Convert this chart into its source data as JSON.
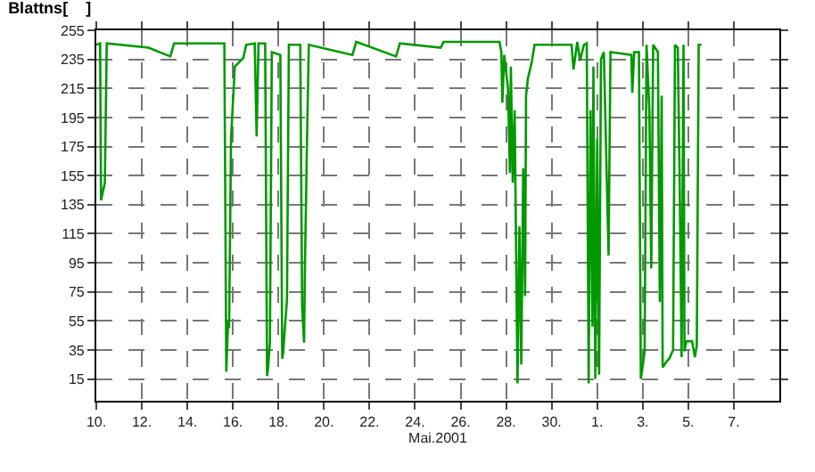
{
  "chart_data": {
    "type": "line",
    "title": "Blattns[    ]",
    "xlabel": "Mai.2001",
    "xlim": [
      "2001-05-10",
      "2001-06-09"
    ],
    "xticks": [
      {
        "value": "2001-05-10",
        "label": "10."
      },
      {
        "value": "2001-05-12",
        "label": "12."
      },
      {
        "value": "2001-05-14",
        "label": "14."
      },
      {
        "value": "2001-05-16",
        "label": "16."
      },
      {
        "value": "2001-05-18",
        "label": "18."
      },
      {
        "value": "2001-05-20",
        "label": "20."
      },
      {
        "value": "2001-05-22",
        "label": "22."
      },
      {
        "value": "2001-05-24",
        "label": "24."
      },
      {
        "value": "2001-05-26",
        "label": "26."
      },
      {
        "value": "2001-05-28",
        "label": "28."
      },
      {
        "value": "2001-05-30",
        "label": "30."
      },
      {
        "value": "2001-06-01",
        "label": "1."
      },
      {
        "value": "2001-06-03",
        "label": "3."
      },
      {
        "value": "2001-06-05",
        "label": "5."
      },
      {
        "value": "2001-06-07",
        "label": "7."
      }
    ],
    "ylim": [
      0,
      255
    ],
    "yticks": [
      15,
      35,
      55,
      75,
      95,
      115,
      135,
      155,
      175,
      195,
      215,
      235,
      255
    ],
    "grid": true,
    "line_style": "solid",
    "marker": "none",
    "series": [
      {
        "color": "#009900",
        "x": [
          "2001-05-10T00:00",
          "2001-05-10T04:00",
          "2001-05-10T05:00",
          "2001-05-10T09:00",
          "2001-05-10T11:00",
          "2001-05-12T07:00",
          "2001-05-13T06:00",
          "2001-05-13T10:00",
          "2001-05-15T15:00",
          "2001-05-15T17:00",
          "2001-05-15T19:00",
          "2001-05-15T20:00",
          "2001-05-15T22:00",
          "2001-05-16T02:00",
          "2001-05-16T11:00",
          "2001-05-16T14:00",
          "2001-05-16T23:00",
          "2001-05-17T01:00",
          "2001-05-17T03:00",
          "2001-05-17T10:00",
          "2001-05-17T12:00",
          "2001-05-17T13:00",
          "2001-05-17T15:00",
          "2001-05-17T17:00",
          "2001-05-18T02:00",
          "2001-05-18T04:00",
          "2001-05-18T05:00",
          "2001-05-18T09:00",
          "2001-05-18T11:00",
          "2001-05-18T23:00",
          "2001-05-19T01:00",
          "2001-05-19T03:00",
          "2001-05-19T04:00",
          "2001-05-19T06:00",
          "2001-05-19T08:00",
          "2001-05-21T06:00",
          "2001-05-21T10:00",
          "2001-05-23T04:00",
          "2001-05-23T08:00",
          "2001-05-25T03:00",
          "2001-05-25T06:00",
          "2001-05-27T17:00",
          "2001-05-27T19:00",
          "2001-05-27T20:00",
          "2001-05-27T22:00",
          "2001-05-28T02:00",
          "2001-05-28T04:00",
          "2001-05-28T05:00",
          "2001-05-28T07:00",
          "2001-05-28T09:00",
          "2001-05-28T12:00",
          "2001-05-28T14:00",
          "2001-05-28T16:00",
          "2001-05-28T18:00",
          "2001-05-28T20:00",
          "2001-05-28T21:00",
          "2001-05-28T23:00",
          "2001-05-29T03:00",
          "2001-05-29T06:00",
          "2001-05-30T21:00",
          "2001-05-30T23:00",
          "2001-05-31T03:00",
          "2001-05-31T06:00",
          "2001-05-31T10:00",
          "2001-05-31T13:00",
          "2001-05-31T15:00",
          "2001-05-31T17:00",
          "2001-05-31T19:00",
          "2001-05-31T20:00",
          "2001-05-31T22:00",
          "2001-06-01T00:00",
          "2001-06-01T02:00",
          "2001-06-01T04:00",
          "2001-06-01T07:00",
          "2001-06-01T12:00",
          "2001-06-01T14:00",
          "2001-06-02T12:00",
          "2001-06-02T13:00",
          "2001-06-02T15:00",
          "2001-06-02T20:00",
          "2001-06-02T22:00",
          "2001-06-03T00:00",
          "2001-06-03T02:00",
          "2001-06-03T04:00",
          "2001-06-03T07:00",
          "2001-06-03T09:00",
          "2001-06-03T11:00",
          "2001-06-03T16:00",
          "2001-06-03T18:00",
          "2001-06-03T20:00",
          "2001-06-03T21:00",
          "2001-06-04T01:00",
          "2001-06-04T04:00",
          "2001-06-04T08:00",
          "2001-06-04T10:00",
          "2001-06-04T13:00",
          "2001-06-04T15:00",
          "2001-06-04T17:00",
          "2001-06-04T19:00",
          "2001-06-04T20:00",
          "2001-06-04T22:00",
          "2001-06-05T04:00",
          "2001-06-05T07:00",
          "2001-06-05T09:00",
          "2001-06-05T11:00",
          "2001-06-05T14:00"
        ],
        "values": [
          245,
          246,
          138,
          150,
          246,
          243,
          237,
          246,
          246,
          20,
          55,
          50,
          180,
          230,
          236,
          245,
          246,
          182,
          246,
          246,
          17,
          22,
          40,
          240,
          238,
          29,
          33,
          70,
          245,
          245,
          64,
          40,
          95,
          175,
          245,
          238,
          247,
          237,
          246,
          243,
          247,
          247,
          240,
          205,
          238,
          215,
          157,
          230,
          150,
          200,
          12,
          120,
          25,
          160,
          72,
          210,
          222,
          233,
          245,
          245,
          228,
          247,
          234,
          245,
          246,
          12,
          200,
          51,
          230,
          15,
          180,
          18,
          235,
          240,
          100,
          240,
          238,
          212,
          240,
          240,
          15,
          24,
          34,
          245,
          200,
          91,
          245,
          240,
          68,
          210,
          23,
          27,
          29,
          35,
          245,
          243,
          146,
          30,
          245,
          34,
          41,
          41,
          30,
          38,
          245,
          245
        ]
      }
    ]
  }
}
